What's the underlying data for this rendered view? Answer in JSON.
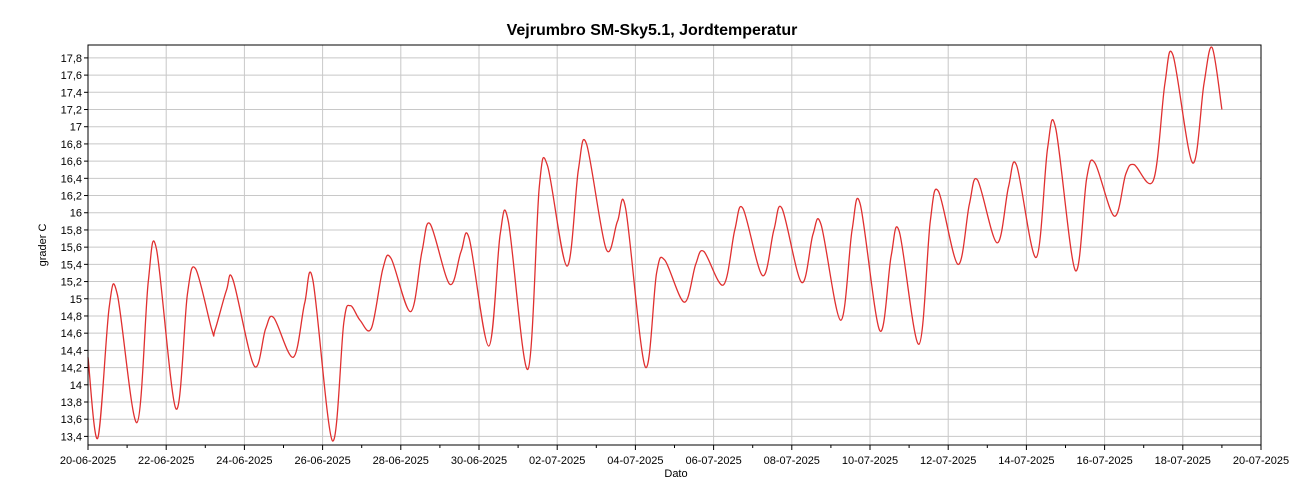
{
  "chart_data": {
    "type": "line",
    "title": "Vejrumbro SM-Sky5.1, Jordtemperatur",
    "xlabel": "Dato",
    "ylabel": "grader C",
    "x_ticks": [
      "20-06-2025",
      "22-06-2025",
      "24-06-2025",
      "26-06-2025",
      "28-06-2025",
      "30-06-2025",
      "02-07-2025",
      "04-07-2025",
      "06-07-2025",
      "08-07-2025",
      "10-07-2025",
      "12-07-2025",
      "14-07-2025",
      "16-07-2025",
      "18-07-2025",
      "20-07-2025"
    ],
    "y_ticks": [
      "13,4",
      "13,6",
      "13,8",
      "14",
      "14,2",
      "14,4",
      "14,6",
      "14,8",
      "15",
      "15,2",
      "15,4",
      "15,6",
      "15,8",
      "16",
      "16,2",
      "16,4",
      "16,6",
      "16,8",
      "17",
      "17,2",
      "17,4",
      "17,6",
      "17,8"
    ],
    "xlim": [
      "2025-06-20",
      "2025-07-20"
    ],
    "ylim": [
      13.3,
      17.95
    ],
    "grid": true,
    "series_color": "#e03030",
    "series": [
      {
        "points": [
          [
            "2025-06-20T00:00",
            14.32
          ],
          [
            "2025-06-20T06:00",
            13.38
          ],
          [
            "2025-06-20T13:00",
            14.9
          ],
          [
            "2025-06-20T18:00",
            15.05
          ],
          [
            "2025-06-21T06:00",
            13.56
          ],
          [
            "2025-06-21T13:00",
            15.2
          ],
          [
            "2025-06-21T18:00",
            15.58
          ],
          [
            "2025-06-22T06:00",
            13.72
          ],
          [
            "2025-06-22T13:00",
            15.05
          ],
          [
            "2025-06-22T18:00",
            15.35
          ],
          [
            "2025-06-23T04:00",
            14.64
          ],
          [
            "2025-06-23T06:00",
            14.64
          ],
          [
            "2025-06-23T13:00",
            15.1
          ],
          [
            "2025-06-23T17:00",
            15.22
          ],
          [
            "2025-06-24T06:00",
            14.22
          ],
          [
            "2025-06-24T13:00",
            14.65
          ],
          [
            "2025-06-24T18:00",
            14.78
          ],
          [
            "2025-06-25T06:00",
            14.32
          ],
          [
            "2025-06-25T13:00",
            14.95
          ],
          [
            "2025-06-25T18:00",
            15.22
          ],
          [
            "2025-06-26T06:00",
            13.35
          ],
          [
            "2025-06-26T13:00",
            14.72
          ],
          [
            "2025-06-26T17:00",
            14.92
          ],
          [
            "2025-06-26T23:00",
            14.75
          ],
          [
            "2025-06-27T06:00",
            14.66
          ],
          [
            "2025-06-27T13:00",
            15.35
          ],
          [
            "2025-06-27T18:00",
            15.47
          ],
          [
            "2025-06-28T06:00",
            14.85
          ],
          [
            "2025-06-28T13:00",
            15.55
          ],
          [
            "2025-06-28T18:00",
            15.87
          ],
          [
            "2025-06-29T06:00",
            15.17
          ],
          [
            "2025-06-29T13:00",
            15.55
          ],
          [
            "2025-06-29T18:00",
            15.7
          ],
          [
            "2025-06-30T06:00",
            14.45
          ],
          [
            "2025-06-30T13:00",
            15.75
          ],
          [
            "2025-06-30T18:00",
            15.9
          ],
          [
            "2025-07-01T06:00",
            14.18
          ],
          [
            "2025-07-01T13:00",
            16.3
          ],
          [
            "2025-07-01T18:00",
            16.55
          ],
          [
            "2025-07-02T06:00",
            15.38
          ],
          [
            "2025-07-02T13:00",
            16.5
          ],
          [
            "2025-07-02T18:00",
            16.8
          ],
          [
            "2025-07-03T06:00",
            15.58
          ],
          [
            "2025-07-03T13:00",
            15.9
          ],
          [
            "2025-07-03T18:00",
            16.05
          ],
          [
            "2025-07-04T06:00",
            14.21
          ],
          [
            "2025-07-04T13:00",
            15.3
          ],
          [
            "2025-07-04T18:00",
            15.45
          ],
          [
            "2025-07-05T06:00",
            14.96
          ],
          [
            "2025-07-05T13:00",
            15.4
          ],
          [
            "2025-07-05T18:00",
            15.55
          ],
          [
            "2025-07-06T06:00",
            15.16
          ],
          [
            "2025-07-06T13:00",
            15.8
          ],
          [
            "2025-07-06T18:00",
            16.05
          ],
          [
            "2025-07-07T06:00",
            15.27
          ],
          [
            "2025-07-07T13:00",
            15.8
          ],
          [
            "2025-07-07T18:00",
            16.05
          ],
          [
            "2025-07-08T06:00",
            15.19
          ],
          [
            "2025-07-08T13:00",
            15.75
          ],
          [
            "2025-07-08T18:00",
            15.86
          ],
          [
            "2025-07-09T06:00",
            14.75
          ],
          [
            "2025-07-09T13:00",
            15.8
          ],
          [
            "2025-07-09T18:00",
            16.1
          ],
          [
            "2025-07-10T06:00",
            14.63
          ],
          [
            "2025-07-10T13:00",
            15.5
          ],
          [
            "2025-07-10T18:00",
            15.78
          ],
          [
            "2025-07-11T06:00",
            14.47
          ],
          [
            "2025-07-11T13:00",
            15.9
          ],
          [
            "2025-07-11T18:00",
            16.25
          ],
          [
            "2025-07-12T06:00",
            15.4
          ],
          [
            "2025-07-12T13:00",
            16.1
          ],
          [
            "2025-07-12T18:00",
            16.38
          ],
          [
            "2025-07-13T06:00",
            15.65
          ],
          [
            "2025-07-13T13:00",
            16.3
          ],
          [
            "2025-07-13T18:00",
            16.55
          ],
          [
            "2025-07-14T06:00",
            15.48
          ],
          [
            "2025-07-14T13:00",
            16.75
          ],
          [
            "2025-07-14T18:00",
            16.98
          ],
          [
            "2025-07-15T06:00",
            15.33
          ],
          [
            "2025-07-15T13:00",
            16.4
          ],
          [
            "2025-07-15T18:00",
            16.58
          ],
          [
            "2025-07-16T06:00",
            15.96
          ],
          [
            "2025-07-16T13:00",
            16.45
          ],
          [
            "2025-07-16T18:00",
            16.56
          ],
          [
            "2025-07-17T06:00",
            16.38
          ],
          [
            "2025-07-17T13:00",
            17.5
          ],
          [
            "2025-07-17T18:00",
            17.83
          ],
          [
            "2025-07-18T06:00",
            16.58
          ],
          [
            "2025-07-18T13:00",
            17.5
          ],
          [
            "2025-07-18T18:00",
            17.92
          ],
          [
            "2025-07-19T00:00",
            17.2
          ]
        ]
      }
    ]
  }
}
